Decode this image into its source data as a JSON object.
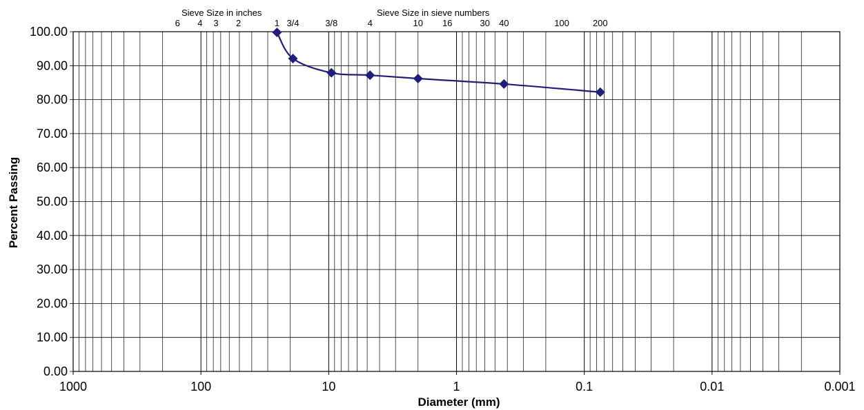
{
  "chart_data": {
    "type": "scatter",
    "xlabel": "Diameter (mm)",
    "ylabel": "Percent Passing",
    "x_scale": "log",
    "x_reversed": true,
    "xlim": [
      1000,
      0.001
    ],
    "ylim": [
      0,
      100
    ],
    "grid": true,
    "x_tick_labels": [
      "1000",
      "100",
      "10",
      "1",
      "0.1",
      "0.01",
      "0.001"
    ],
    "y_tick_labels": [
      "0.00",
      "10.00",
      "20.00",
      "30.00",
      "40.00",
      "50.00",
      "60.00",
      "70.00",
      "80.00",
      "90.00",
      "100.00"
    ],
    "top_axis": {
      "inches_title": "Sieve Size in inches",
      "numbers_title": "Sieve Size in sieve numbers",
      "labels": [
        {
          "label": "6",
          "diameter": 152.4
        },
        {
          "label": "4",
          "diameter": 101.6
        },
        {
          "label": "3",
          "diameter": 76.2
        },
        {
          "label": "2",
          "diameter": 50.8
        },
        {
          "label": "1",
          "diameter": 25.4
        },
        {
          "label": "3/4",
          "diameter": 19.05
        },
        {
          "label": "3/8",
          "diameter": 9.525
        },
        {
          "label": "4",
          "diameter": 4.75
        },
        {
          "label": "10",
          "diameter": 2.0
        },
        {
          "label": "16",
          "diameter": 1.18
        },
        {
          "label": "30",
          "diameter": 0.6
        },
        {
          "label": "40",
          "diameter": 0.425
        },
        {
          "label": "100",
          "diameter": 0.15
        },
        {
          "label": "200",
          "diameter": 0.075
        }
      ]
    },
    "series": [
      {
        "x": [
          25.4,
          19.05,
          9.525,
          4.75,
          2.0,
          0.425,
          0.075
        ],
        "y": [
          99.8,
          92.1,
          87.9,
          87.2,
          86.2,
          84.6,
          82.2
        ],
        "color": "#1f1f7a",
        "marker": "diamond"
      }
    ]
  }
}
